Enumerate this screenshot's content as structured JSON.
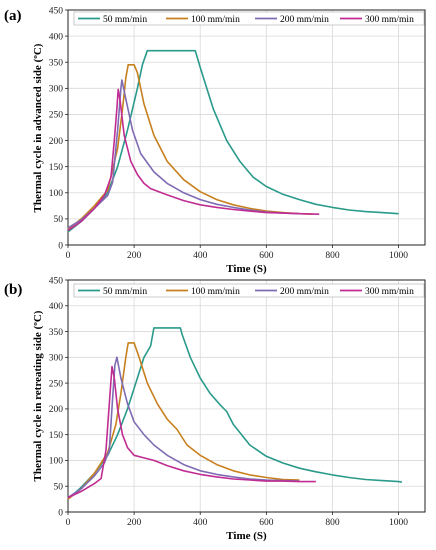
{
  "chart_data": [
    {
      "type": "line",
      "panel_label": "(a)",
      "xlabel": "Time (S)",
      "ylabel": "Thermal cycle in advanced side (ºC)",
      "xlim": [
        0,
        1080
      ],
      "ylim": [
        0,
        450
      ],
      "xticks": [
        0,
        200,
        400,
        600,
        800,
        1000
      ],
      "yticks": [
        0,
        50,
        100,
        150,
        200,
        250,
        300,
        350,
        400,
        450
      ],
      "grid": true,
      "legend": "top",
      "series": [
        {
          "name": "50 mm/min",
          "color": "#2a9a8a",
          "points": [
            [
              0,
              25
            ],
            [
              40,
              45
            ],
            [
              80,
              70
            ],
            [
              120,
              100
            ],
            [
              150,
              150
            ],
            [
              180,
              220
            ],
            [
              210,
              300
            ],
            [
              225,
              345
            ],
            [
              240,
              372
            ],
            [
              300,
              372
            ],
            [
              360,
              372
            ],
            [
              385,
              372
            ],
            [
              400,
              340
            ],
            [
              440,
              260
            ],
            [
              480,
              200
            ],
            [
              520,
              160
            ],
            [
              560,
              130
            ],
            [
              600,
              112
            ],
            [
              650,
              97
            ],
            [
              700,
              87
            ],
            [
              750,
              78
            ],
            [
              800,
              72
            ],
            [
              850,
              67
            ],
            [
              900,
              64
            ],
            [
              950,
              62
            ],
            [
              1000,
              60
            ]
          ]
        },
        {
          "name": "100 mm/min",
          "color": "#c8801e",
          "points": [
            [
              0,
              30
            ],
            [
              40,
              50
            ],
            [
              80,
              75
            ],
            [
              120,
              105
            ],
            [
              150,
              185
            ],
            [
              165,
              260
            ],
            [
              175,
              320
            ],
            [
              182,
              345
            ],
            [
              200,
              345
            ],
            [
              210,
              330
            ],
            [
              230,
              270
            ],
            [
              260,
              210
            ],
            [
              300,
              160
            ],
            [
              350,
              125
            ],
            [
              400,
              102
            ],
            [
              450,
              87
            ],
            [
              500,
              77
            ],
            [
              550,
              70
            ],
            [
              600,
              65
            ],
            [
              650,
              62
            ],
            [
              700,
              60
            ],
            [
              740,
              59
            ]
          ]
        },
        {
          "name": "200 mm/min",
          "color": "#7f6bb3",
          "points": [
            [
              0,
              33
            ],
            [
              40,
              48
            ],
            [
              80,
              70
            ],
            [
              120,
              95
            ],
            [
              135,
              120
            ],
            [
              150,
              220
            ],
            [
              160,
              300
            ],
            [
              163,
              316
            ],
            [
              175,
              280
            ],
            [
              195,
              220
            ],
            [
              220,
              175
            ],
            [
              260,
              140
            ],
            [
              300,
              118
            ],
            [
              350,
              100
            ],
            [
              400,
              87
            ],
            [
              450,
              78
            ],
            [
              500,
              72
            ],
            [
              550,
              67
            ],
            [
              600,
              63
            ],
            [
              650,
              61
            ],
            [
              700,
              60
            ]
          ]
        },
        {
          "name": "300 mm/min",
          "color": "#c02c92",
          "points": [
            [
              0,
              28
            ],
            [
              40,
              45
            ],
            [
              80,
              70
            ],
            [
              110,
              95
            ],
            [
              130,
              130
            ],
            [
              140,
              200
            ],
            [
              148,
              262
            ],
            [
              152,
              298
            ],
            [
              158,
              275
            ],
            [
              170,
              210
            ],
            [
              190,
              160
            ],
            [
              210,
              135
            ],
            [
              230,
              118
            ],
            [
              250,
              108
            ],
            [
              300,
              96
            ],
            [
              350,
              85
            ],
            [
              400,
              77
            ],
            [
              450,
              72
            ],
            [
              500,
              68
            ],
            [
              550,
              65
            ],
            [
              600,
              62
            ],
            [
              650,
              61
            ],
            [
              700,
              60
            ],
            [
              760,
              59
            ]
          ]
        }
      ]
    },
    {
      "type": "line",
      "panel_label": "(b)",
      "xlabel": "Time (S)",
      "ylabel": "Thermal cycle in retreating side (ºC)",
      "xlim": [
        0,
        1080
      ],
      "ylim": [
        0,
        450
      ],
      "xticks": [
        0,
        200,
        400,
        600,
        800,
        1000
      ],
      "yticks": [
        0,
        50,
        100,
        150,
        200,
        250,
        300,
        350,
        400,
        450
      ],
      "grid": true,
      "legend": "top",
      "series": [
        {
          "name": "50 mm/min",
          "color": "#2a9a8a",
          "points": [
            [
              0,
              25
            ],
            [
              40,
              48
            ],
            [
              80,
              75
            ],
            [
              120,
              110
            ],
            [
              150,
              150
            ],
            [
              180,
              200
            ],
            [
              210,
              260
            ],
            [
              230,
              300
            ],
            [
              250,
              322
            ],
            [
              260,
              357
            ],
            [
              300,
              357
            ],
            [
              340,
              357
            ],
            [
              345,
              345
            ],
            [
              370,
              300
            ],
            [
              400,
              260
            ],
            [
              430,
              230
            ],
            [
              460,
              208
            ],
            [
              480,
              195
            ],
            [
              500,
              170
            ],
            [
              550,
              130
            ],
            [
              600,
              108
            ],
            [
              650,
              95
            ],
            [
              700,
              85
            ],
            [
              750,
              78
            ],
            [
              800,
              72
            ],
            [
              850,
              67
            ],
            [
              900,
              63
            ],
            [
              950,
              61
            ],
            [
              1000,
              59
            ],
            [
              1010,
              58
            ]
          ]
        },
        {
          "name": "100 mm/min",
          "color": "#c8801e",
          "points": [
            [
              0,
              25
            ],
            [
              40,
              45
            ],
            [
              80,
              75
            ],
            [
              120,
              115
            ],
            [
              145,
              170
            ],
            [
              160,
              230
            ],
            [
              175,
              300
            ],
            [
              182,
              328
            ],
            [
              200,
              328
            ],
            [
              215,
              300
            ],
            [
              240,
              250
            ],
            [
              270,
              210
            ],
            [
              300,
              180
            ],
            [
              330,
              160
            ],
            [
              360,
              130
            ],
            [
              400,
              110
            ],
            [
              450,
              92
            ],
            [
              500,
              80
            ],
            [
              550,
              72
            ],
            [
              600,
              67
            ],
            [
              650,
              63
            ],
            [
              700,
              62
            ]
          ]
        },
        {
          "name": "200 mm/min",
          "color": "#7f6bb3",
          "points": [
            [
              0,
              28
            ],
            [
              40,
              45
            ],
            [
              80,
              70
            ],
            [
              110,
              95
            ],
            [
              125,
              120
            ],
            [
              135,
              220
            ],
            [
              142,
              285
            ],
            [
              148,
              300
            ],
            [
              160,
              260
            ],
            [
              180,
              210
            ],
            [
              200,
              175
            ],
            [
              230,
              150
            ],
            [
              260,
              130
            ],
            [
              300,
              110
            ],
            [
              350,
              92
            ],
            [
              400,
              80
            ],
            [
              450,
              73
            ],
            [
              500,
              68
            ],
            [
              550,
              64
            ],
            [
              600,
              62
            ],
            [
              650,
              61
            ],
            [
              700,
              60
            ]
          ]
        },
        {
          "name": "300 mm/min",
          "color": "#c02c92",
          "points": [
            [
              0,
              28
            ],
            [
              40,
              40
            ],
            [
              80,
              55
            ],
            [
              100,
              65
            ],
            [
              115,
              120
            ],
            [
              125,
              210
            ],
            [
              133,
              282
            ],
            [
              140,
              260
            ],
            [
              150,
              200
            ],
            [
              165,
              150
            ],
            [
              180,
              125
            ],
            [
              200,
              110
            ],
            [
              230,
              105
            ],
            [
              260,
              100
            ],
            [
              300,
              90
            ],
            [
              350,
              80
            ],
            [
              400,
              73
            ],
            [
              450,
              68
            ],
            [
              500,
              64
            ],
            [
              550,
              62
            ],
            [
              600,
              60
            ],
            [
              650,
              60
            ],
            [
              700,
              59
            ],
            [
              750,
              59
            ]
          ]
        }
      ]
    }
  ]
}
